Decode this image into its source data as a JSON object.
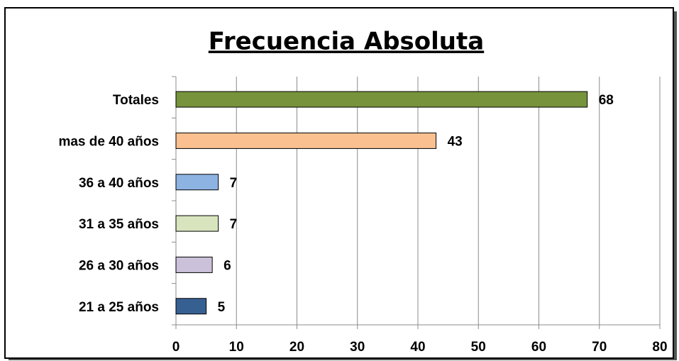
{
  "chart_data": {
    "type": "barh",
    "title": "Frecuencia Absoluta",
    "categories": [
      "Totales",
      "mas de 40 años",
      "36 a 40 años",
      "31 a 35 años",
      "26 a 30 años",
      "21 a 25 años"
    ],
    "values": [
      68,
      43,
      7,
      7,
      6,
      5
    ],
    "colors": [
      "#77933c",
      "#fac090",
      "#8db3e2",
      "#d7e4bd",
      "#ccc1da",
      "#376092"
    ],
    "xlim": [
      0,
      80
    ],
    "xticks": [
      0,
      10,
      20,
      30,
      40,
      50,
      60,
      70,
      80
    ],
    "grid": true
  }
}
